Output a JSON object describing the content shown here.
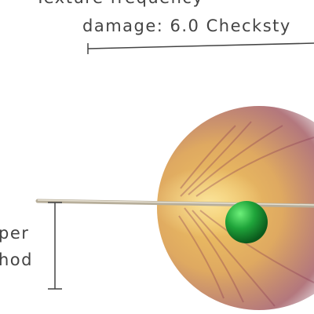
{
  "labels": {
    "top": "Texture frequency",
    "damage": "damage: 6.0 Checksty",
    "left_1": "per",
    "left_2": "hod"
  }
}
